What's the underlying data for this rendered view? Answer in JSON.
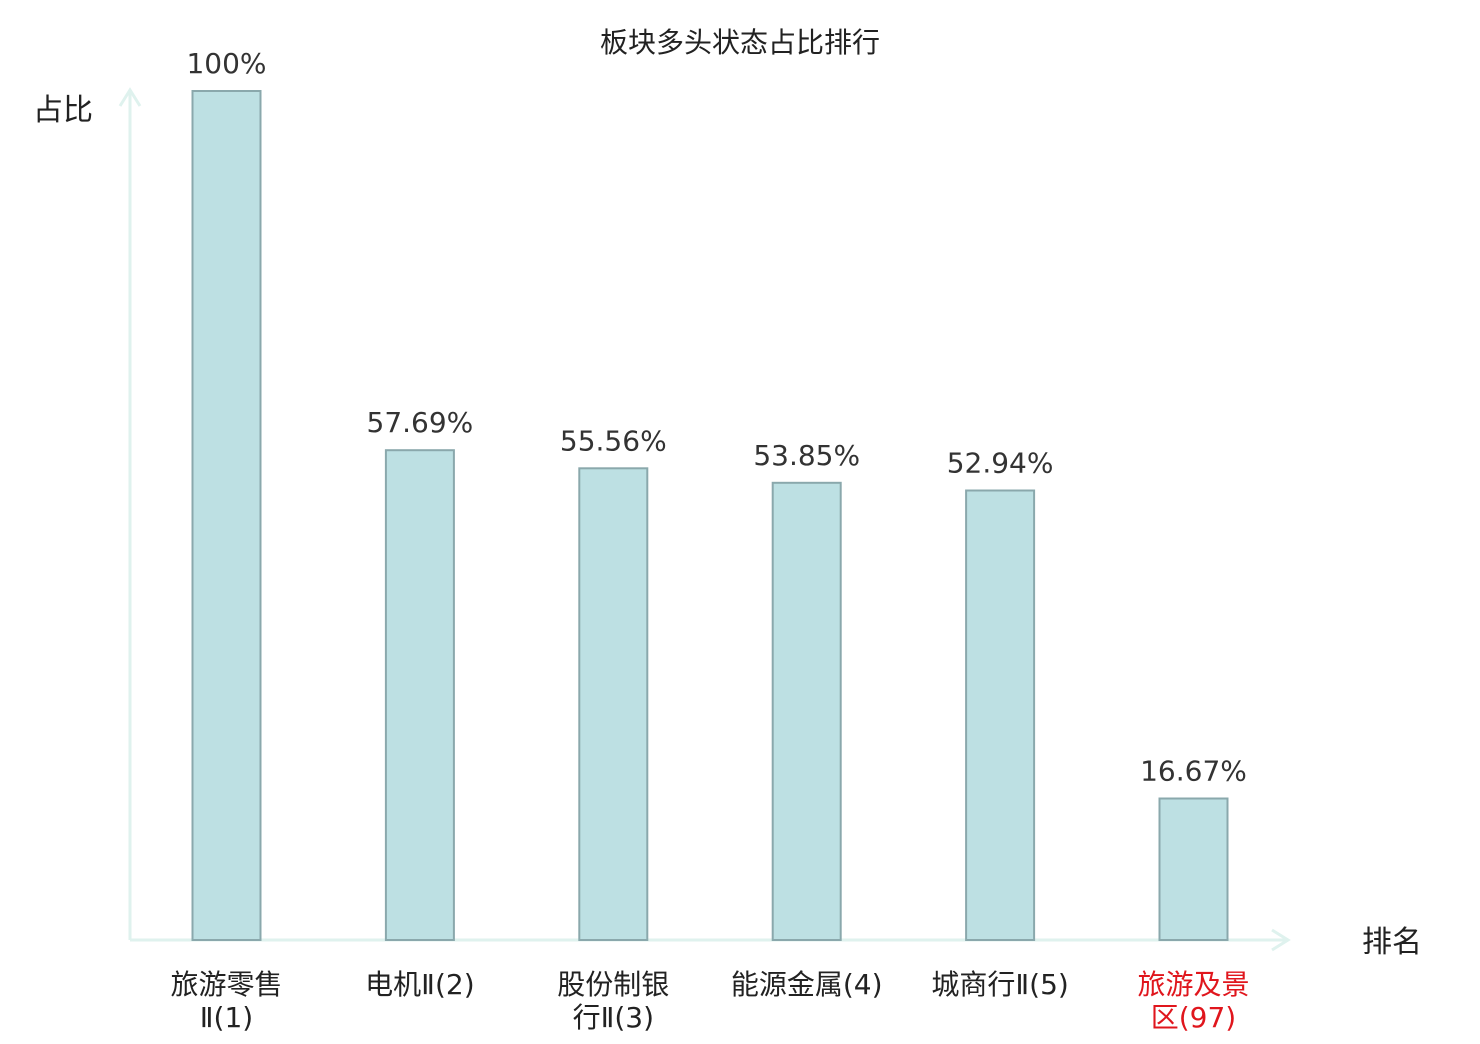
{
  "chart_data": {
    "type": "bar",
    "title": "板块多头状态占比排行",
    "ylabel": "占比",
    "xlabel": "排名",
    "ylim": [
      0,
      100
    ],
    "grid": false,
    "categories": [
      {
        "lines": [
          "旅游零售",
          "Ⅱ(1)"
        ],
        "highlight": false
      },
      {
        "lines": [
          "电机Ⅱ(2)"
        ],
        "highlight": false
      },
      {
        "lines": [
          "股份制银",
          "行Ⅱ(3)"
        ],
        "highlight": false
      },
      {
        "lines": [
          "能源金属(4)"
        ],
        "highlight": false
      },
      {
        "lines": [
          "城商行Ⅱ(5)"
        ],
        "highlight": false
      },
      {
        "lines": [
          "旅游及景",
          "区(97)"
        ],
        "highlight": true
      }
    ],
    "values": [
      100,
      57.69,
      55.56,
      53.85,
      52.94,
      16.67
    ],
    "value_labels": [
      "100%",
      "57.69%",
      "55.56%",
      "53.85%",
      "52.94%",
      "16.67%"
    ],
    "colors": {
      "bar_fill": "#bde0e3",
      "bar_stroke": "#8aa8ac",
      "axis": "#dff2ee",
      "text": "#222222",
      "highlight_text": "#e0161d"
    }
  }
}
